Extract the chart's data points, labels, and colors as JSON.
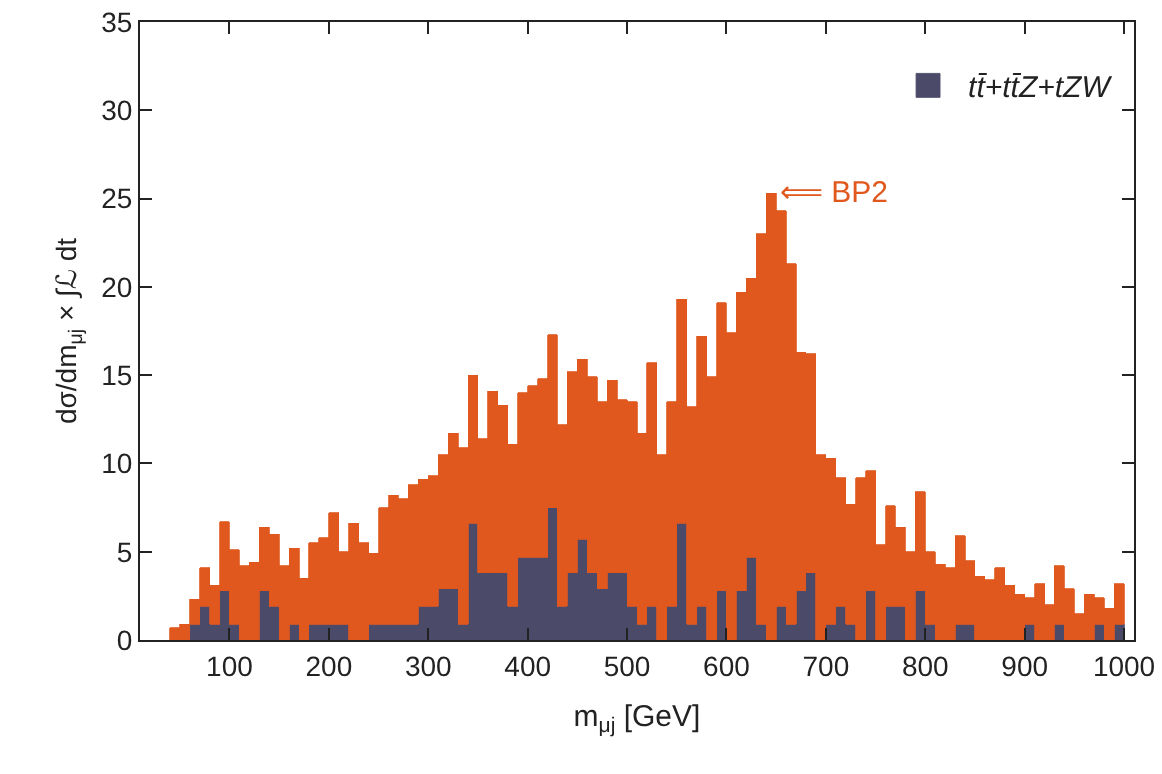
{
  "chart_data": {
    "type": "bar",
    "xlabel": "m$_{μj}$ [GeV]",
    "ylabel": "dσ/dm$_{μj}$ × ∫ℒ dt",
    "x": [
      45,
      55,
      65,
      75,
      85,
      95,
      105,
      115,
      125,
      135,
      145,
      155,
      165,
      175,
      185,
      195,
      205,
      215,
      225,
      235,
      245,
      255,
      265,
      275,
      285,
      295,
      305,
      315,
      325,
      335,
      345,
      355,
      365,
      375,
      385,
      395,
      405,
      415,
      425,
      435,
      445,
      455,
      465,
      475,
      485,
      495,
      505,
      515,
      525,
      535,
      545,
      555,
      565,
      575,
      585,
      595,
      605,
      615,
      625,
      635,
      645,
      655,
      665,
      675,
      685,
      695,
      705,
      715,
      725,
      735,
      745,
      755,
      765,
      775,
      785,
      795,
      805,
      815,
      825,
      835,
      845,
      855,
      865,
      875,
      885,
      895,
      905,
      915,
      925,
      935,
      945,
      955,
      965,
      975,
      985,
      995
    ],
    "stacked": true,
    "series": [
      {
        "name": "tt̄+tt̄Z+tZW",
        "color": "#4b4a68",
        "values": [
          0,
          0,
          0.9,
          1.9,
          0.9,
          2.8,
          0.9,
          0,
          0,
          2.8,
          1.9,
          0,
          0.9,
          0,
          0.9,
          0.9,
          0.9,
          0.9,
          0,
          0,
          0.9,
          0.9,
          0.9,
          0.9,
          0.9,
          1.9,
          1.9,
          2.9,
          2.9,
          0.9,
          6.6,
          3.8,
          3.8,
          3.8,
          1.9,
          4.7,
          4.7,
          4.7,
          7.5,
          1.9,
          3.8,
          5.7,
          3.8,
          2.9,
          3.8,
          3.8,
          1.9,
          0.9,
          1.9,
          0,
          1.9,
          6.6,
          0.9,
          1.9,
          0,
          2.8,
          0,
          2.8,
          4.7,
          0.9,
          0,
          1.9,
          0.9,
          2.8,
          3.8,
          0,
          0.9,
          1.9,
          0.9,
          0,
          2.8,
          0,
          1.9,
          1.9,
          0,
          2.8,
          0.9,
          0,
          0,
          0.9,
          0.9,
          0,
          0,
          0,
          0,
          0,
          0.9,
          0,
          0,
          0.9,
          0,
          0,
          0,
          0.9,
          0,
          0.9
        ]
      },
      {
        "color": "#e0581e",
        "values": [
          0.7,
          0.9,
          1.4,
          2.2,
          2.2,
          3.9,
          4.2,
          4.2,
          4.4,
          3.6,
          4.1,
          4.2,
          4.3,
          3.5,
          4.6,
          4.9,
          6.3,
          4.1,
          6.6,
          5.5,
          4.0,
          6.6,
          7.3,
          7.1,
          7.9,
          7.2,
          7.4,
          7.6,
          8.8,
          10.0,
          8.4,
          7.6,
          10.3,
          9.5,
          9.2,
          9.3,
          9.7,
          10.1,
          9.8,
          10.3,
          11.4,
          10.2,
          11.1,
          10.6,
          10.9,
          9.8,
          11.6,
          10.8,
          13.8,
          10.5,
          11.6,
          12.7,
          12.3,
          15.3,
          14.9,
          16.3,
          17.4,
          16.9,
          15.8,
          22.1,
          25.3,
          22.4,
          20.4,
          13.5,
          12.4,
          10.5,
          9.4,
          7.3,
          6.8,
          9.2,
          6.8,
          5.4,
          5.7,
          4.5,
          5.0,
          5.6,
          4.1,
          4.3,
          4.1,
          5.0,
          3.6,
          3.6,
          3.4,
          4.1,
          3.1,
          2.6,
          1.5,
          3.2,
          2.0,
          3.3,
          2.9,
          1.5,
          2.6,
          1.5,
          1.8,
          2.3
        ]
      }
    ],
    "xlim": [
      10,
      1010
    ],
    "xticks": [
      100,
      200,
      300,
      400,
      500,
      600,
      700,
      800,
      900,
      1000
    ],
    "ylim": [
      0,
      35
    ],
    "yticks": [
      0,
      5,
      10,
      15,
      20,
      25,
      30,
      35
    ],
    "grid": false,
    "legend": "top right",
    "annotations": [
      {
        "text": "⟸ BP2",
        "x": 650,
        "y": 25.3
      }
    ]
  }
}
